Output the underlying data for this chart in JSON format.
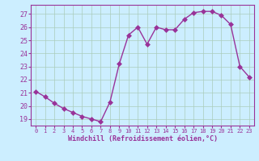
{
  "x": [
    0,
    1,
    2,
    3,
    4,
    5,
    6,
    7,
    8,
    9,
    10,
    11,
    12,
    13,
    14,
    15,
    16,
    17,
    18,
    19,
    20,
    21,
    22,
    23
  ],
  "y": [
    21.1,
    20.7,
    20.2,
    19.8,
    19.5,
    19.2,
    19.0,
    18.8,
    20.3,
    23.2,
    25.4,
    26.0,
    24.7,
    26.0,
    25.8,
    25.8,
    26.6,
    27.1,
    27.2,
    27.2,
    26.9,
    26.2,
    23.0,
    22.2
  ],
  "line_color": "#993399",
  "marker_color": "#993399",
  "bg_color": "#cceeff",
  "grid_color": "#aaccbb",
  "xlabel": "Windchill (Refroidissement éolien,°C)",
  "xlabel_color": "#993399",
  "tick_color": "#993399",
  "ylim": [
    18.5,
    27.7
  ],
  "xlim": [
    -0.5,
    23.5
  ],
  "yticks": [
    19,
    20,
    21,
    22,
    23,
    24,
    25,
    26,
    27
  ],
  "xticks": [
    0,
    1,
    2,
    3,
    4,
    5,
    6,
    7,
    8,
    9,
    10,
    11,
    12,
    13,
    14,
    15,
    16,
    17,
    18,
    19,
    20,
    21,
    22,
    23
  ],
  "xtick_labels": [
    "0",
    "1",
    "2",
    "3",
    "4",
    "5",
    "6",
    "7",
    "8",
    "9",
    "10",
    "11",
    "12",
    "13",
    "14",
    "15",
    "16",
    "17",
    "18",
    "19",
    "20",
    "21",
    "22",
    "23"
  ],
  "font_color": "#993399",
  "font_size": 6,
  "marker_size": 3,
  "line_width": 1.0
}
